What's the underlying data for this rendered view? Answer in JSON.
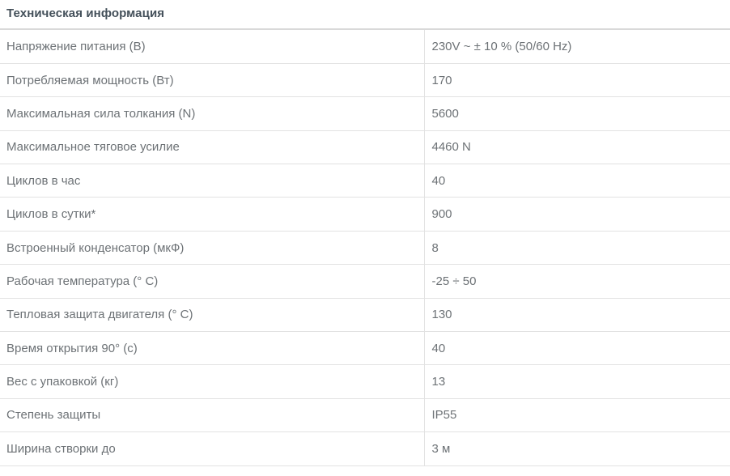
{
  "page": {
    "title": "Техническая информация"
  },
  "table": {
    "rows": [
      {
        "label": "Напряжение питания (В)",
        "value": "230V ~ ± 10 % (50/60 Hz)"
      },
      {
        "label": "Потребляемая мощность (Вт)",
        "value": "170"
      },
      {
        "label": "Максимальная сила толкания (N)",
        "value": "5600"
      },
      {
        "label": "Максимальное тяговое усилие",
        "value": "4460 N"
      },
      {
        "label": "Циклов в час",
        "value": "40"
      },
      {
        "label": "Циклов в сутки*",
        "value": "900"
      },
      {
        "label": "Встроенный конденсатор (мкФ)",
        "value": "8"
      },
      {
        "label": "Рабочая температура (° C)",
        "value": "-25 ÷ 50"
      },
      {
        "label": "Тепловая защита двигателя (° C)",
        "value": "130"
      },
      {
        "label": "Время открытия 90° (с)",
        "value": "40"
      },
      {
        "label": "Вес с упаковкой (кг)",
        "value": "13"
      },
      {
        "label": "Степень защиты",
        "value": "IP55"
      },
      {
        "label": "Ширина створки до",
        "value": "3 м"
      }
    ],
    "colors": {
      "title_text": "#44505a",
      "body_text": "#6d7276",
      "row_line": "#e2e2e2",
      "title_line": "#d9d9d9",
      "background": "#ffffff"
    }
  }
}
